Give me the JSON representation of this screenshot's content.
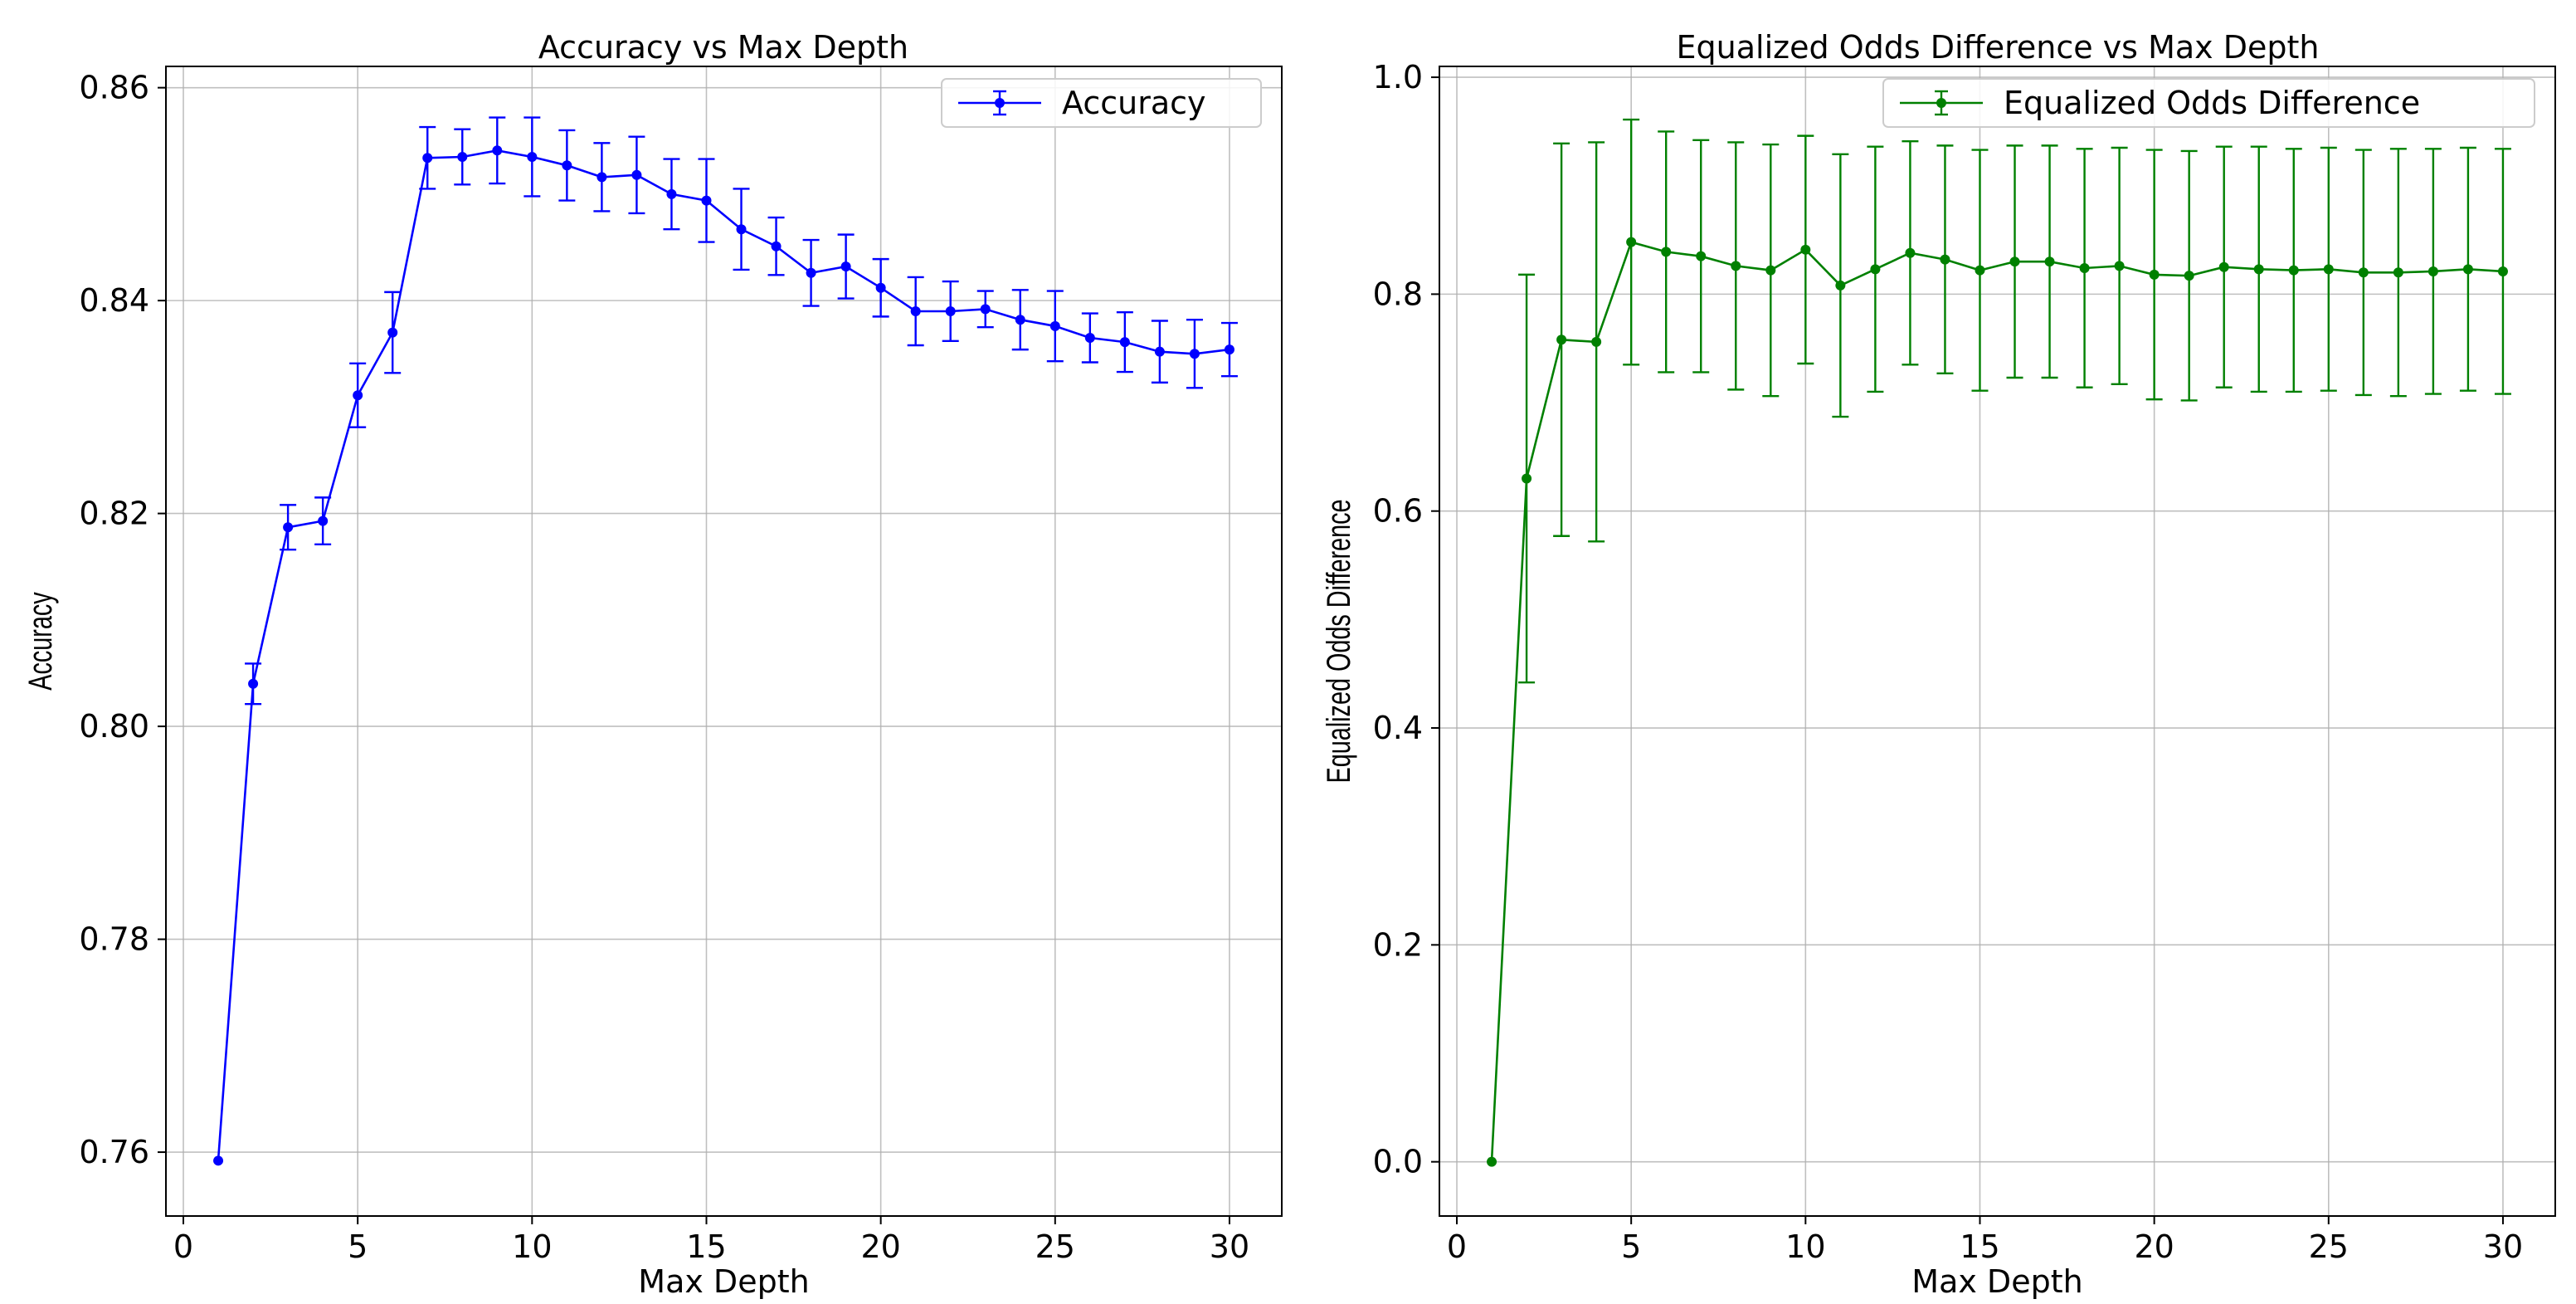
{
  "chart_data": [
    {
      "type": "line",
      "title": "Accuracy vs Max Depth",
      "xlabel": "Max Depth",
      "ylabel": "Accuracy",
      "xlim": [
        -0.5,
        31.5
      ],
      "ylim": [
        0.754,
        0.862
      ],
      "xticks": [
        0,
        5,
        10,
        15,
        20,
        25,
        30
      ],
      "yticks": [
        0.76,
        0.78,
        0.8,
        0.82,
        0.84,
        0.86
      ],
      "ytick_labels": [
        "0.76",
        "0.78",
        "0.80",
        "0.82",
        "0.84",
        "0.86"
      ],
      "grid": true,
      "color": "#0000ff",
      "legend": {
        "position": "top-right"
      },
      "series": [
        {
          "name": "Accuracy",
          "x": [
            1,
            2,
            3,
            4,
            5,
            6,
            7,
            8,
            9,
            10,
            11,
            12,
            13,
            14,
            15,
            16,
            17,
            18,
            19,
            20,
            21,
            22,
            23,
            24,
            25,
            26,
            27,
            28,
            29,
            30
          ],
          "values": [
            0.7592,
            0.804,
            0.8187,
            0.8193,
            0.8311,
            0.837,
            0.8534,
            0.8535,
            0.8541,
            0.8535,
            0.8527,
            0.8516,
            0.8518,
            0.85,
            0.8494,
            0.8467,
            0.8451,
            0.8426,
            0.8432,
            0.8412,
            0.839,
            0.839,
            0.8392,
            0.8382,
            0.8376,
            0.8365,
            0.8361,
            0.8352,
            0.835,
            0.8354
          ],
          "errors": [
            0.0,
            0.0019,
            0.0021,
            0.0022,
            0.003,
            0.0038,
            0.0029,
            0.0026,
            0.0031,
            0.0037,
            0.0033,
            0.0032,
            0.0036,
            0.0033,
            0.0039,
            0.0038,
            0.0027,
            0.0031,
            0.003,
            0.0027,
            0.0032,
            0.0028,
            0.0017,
            0.0028,
            0.0033,
            0.0023,
            0.0028,
            0.0029,
            0.0032,
            0.0025
          ]
        }
      ]
    },
    {
      "type": "line",
      "title": "Equalized Odds Difference vs Max Depth",
      "xlabel": "Max Depth",
      "ylabel": "Equalized Odds Difference",
      "xlim": [
        -0.5,
        31.5
      ],
      "ylim": [
        -0.05,
        1.01
      ],
      "xticks": [
        0,
        5,
        10,
        15,
        20,
        25,
        30
      ],
      "yticks": [
        0.0,
        0.2,
        0.4,
        0.6,
        0.8,
        1.0
      ],
      "ytick_labels": [
        "0.0",
        "0.2",
        "0.4",
        "0.6",
        "0.8",
        "1.0"
      ],
      "grid": true,
      "color": "#008000",
      "legend": {
        "position": "top-right"
      },
      "series": [
        {
          "name": "Equalized Odds Difference",
          "x": [
            1,
            2,
            3,
            4,
            5,
            6,
            7,
            8,
            9,
            10,
            11,
            12,
            13,
            14,
            15,
            16,
            17,
            18,
            19,
            20,
            21,
            22,
            23,
            24,
            25,
            26,
            27,
            28,
            29,
            30
          ],
          "values": [
            0.0,
            0.63,
            0.758,
            0.756,
            0.848,
            0.839,
            0.835,
            0.826,
            0.822,
            0.841,
            0.808,
            0.823,
            0.838,
            0.832,
            0.822,
            0.83,
            0.83,
            0.824,
            0.826,
            0.818,
            0.817,
            0.825,
            0.823,
            0.822,
            0.823,
            0.82,
            0.82,
            0.821,
            0.823,
            0.821
          ],
          "errors": [
            0.0,
            0.188,
            0.181,
            0.184,
            0.113,
            0.111,
            0.107,
            0.114,
            0.116,
            0.105,
            0.121,
            0.113,
            0.103,
            0.105,
            0.111,
            0.107,
            0.107,
            0.11,
            0.109,
            0.115,
            0.115,
            0.111,
            0.113,
            0.112,
            0.112,
            0.113,
            0.114,
            0.113,
            0.112,
            0.113
          ]
        }
      ]
    }
  ]
}
